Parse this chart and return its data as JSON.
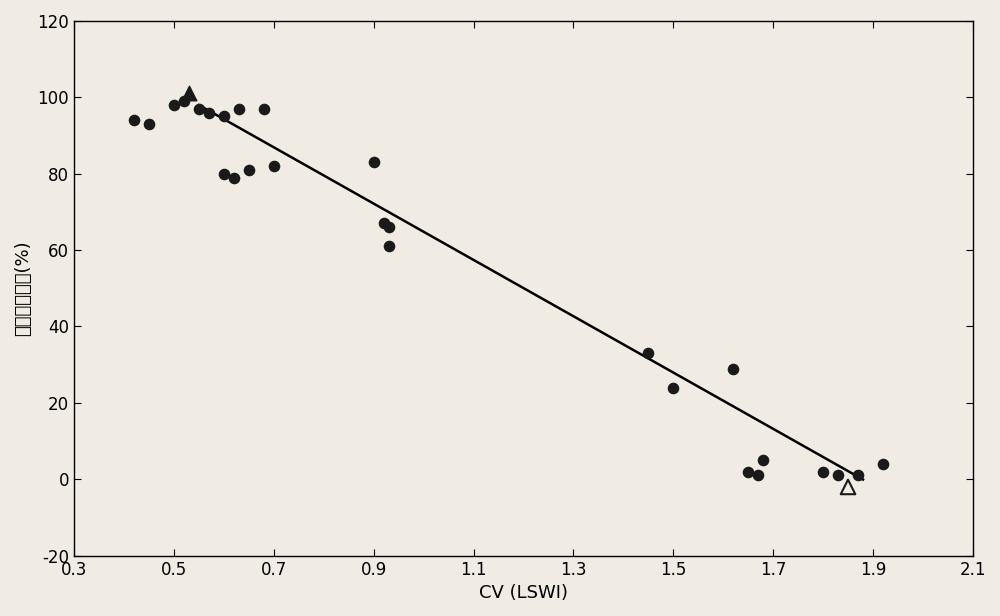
{
  "circle_points": [
    [
      0.42,
      94
    ],
    [
      0.45,
      93
    ],
    [
      0.5,
      98
    ],
    [
      0.52,
      99
    ],
    [
      0.55,
      97
    ],
    [
      0.57,
      96
    ],
    [
      0.6,
      95
    ],
    [
      0.63,
      97
    ],
    [
      0.68,
      97
    ],
    [
      0.6,
      80
    ],
    [
      0.62,
      79
    ],
    [
      0.65,
      81
    ],
    [
      0.7,
      82
    ],
    [
      0.9,
      83
    ],
    [
      0.92,
      67
    ],
    [
      0.93,
      66
    ],
    [
      0.93,
      61
    ],
    [
      1.45,
      33
    ],
    [
      1.5,
      24
    ],
    [
      1.62,
      29
    ],
    [
      1.65,
      2
    ],
    [
      1.67,
      1
    ],
    [
      1.68,
      5
    ],
    [
      1.8,
      2
    ],
    [
      1.83,
      1
    ],
    [
      1.87,
      1
    ],
    [
      1.92,
      4
    ]
  ],
  "triangle_filled": [
    [
      0.53,
      101
    ]
  ],
  "triangle_open": [
    [
      1.85,
      -2
    ]
  ],
  "line_x": [
    0.55,
    1.88
  ],
  "line_slope": -73.7,
  "line_intercept": 138.5,
  "xlabel": "CV (LSWI)",
  "ylabel": "水稻面积比例(%)",
  "xlim": [
    0.3,
    2.1
  ],
  "ylim": [
    -20,
    120
  ],
  "xticks": [
    0.3,
    0.5,
    0.7,
    0.9,
    1.1,
    1.3,
    1.5,
    1.7,
    1.9,
    2.1
  ],
  "yticks": [
    -20,
    0,
    20,
    40,
    60,
    80,
    100,
    120
  ],
  "background_color": "#f0ece4",
  "plot_bg_color": "#f0ece4",
  "marker_color": "#1a1a1a",
  "line_color": "#000000",
  "marker_size_circle": 70,
  "marker_size_triangle": 110,
  "tick_labelsize": 12,
  "xlabel_fontsize": 13,
  "ylabel_fontsize": 13,
  "linewidth": 1.8
}
